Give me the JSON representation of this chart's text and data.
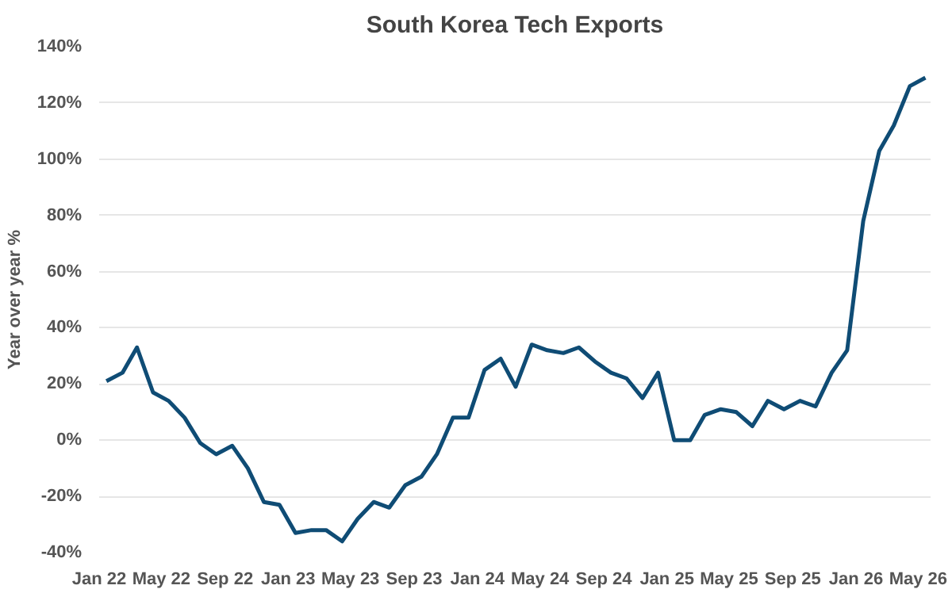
{
  "chart_data": {
    "type": "line",
    "title": "South Korea Tech Exports",
    "ylabel": "Year over year %",
    "x": [
      "2022-01-15",
      "2022-02-15",
      "2022-03-15",
      "2022-04-15",
      "2022-05-15",
      "2022-06-15",
      "2022-07-15",
      "2022-08-15",
      "2022-09-15",
      "2022-10-15",
      "2022-11-15",
      "2022-12-15",
      "2023-01-15",
      "2023-02-15",
      "2023-03-15",
      "2023-04-15",
      "2023-05-15",
      "2023-06-15",
      "2023-07-15",
      "2023-08-15",
      "2023-09-15",
      "2023-10-15",
      "2023-11-15",
      "2023-12-15",
      "2024-01-15",
      "2024-02-15",
      "2024-03-15",
      "2024-04-15",
      "2024-05-15",
      "2024-06-15",
      "2024-07-15",
      "2024-08-15",
      "2024-09-15",
      "2024-10-15",
      "2024-11-15",
      "2024-12-15",
      "2025-01-15",
      "2025-02-15",
      "2025-03-15",
      "2025-04-15",
      "2025-05-15",
      "2025-06-15",
      "2025-07-15",
      "2025-08-15",
      "2025-09-15",
      "2025-10-15",
      "2025-11-15",
      "2025-12-15",
      "2026-01-15",
      "2026-02-15",
      "2026-03-15",
      "2026-04-15",
      "2026-05-15"
    ],
    "series": [
      {
        "color": "#0f4c75",
        "values": [
          21,
          24,
          33,
          17,
          14,
          8,
          -1,
          -5,
          -2,
          -10,
          -22,
          -23,
          -33,
          -32,
          -32,
          -36,
          -28,
          -22,
          -24,
          -16,
          -13,
          -5,
          8,
          8,
          25,
          29,
          19,
          34,
          32,
          31,
          33,
          28,
          24,
          22,
          15,
          24,
          0,
          0,
          9,
          11,
          10,
          5,
          14,
          11,
          14,
          12,
          24,
          32,
          78,
          103,
          112,
          126,
          129
        ]
      }
    ],
    "xlim": [
      "2022-01-01",
      "2026-05-25"
    ],
    "xticks": [
      {
        "value": "2022-01-01",
        "label": "Jan 22"
      },
      {
        "value": "2022-05-01",
        "label": "May 22"
      },
      {
        "value": "2022-09-01",
        "label": "Sep 22"
      },
      {
        "value": "2023-01-01",
        "label": "Jan 23"
      },
      {
        "value": "2023-05-01",
        "label": "May 23"
      },
      {
        "value": "2023-09-01",
        "label": "Sep 23"
      },
      {
        "value": "2024-01-01",
        "label": "Jan 24"
      },
      {
        "value": "2024-05-01",
        "label": "May 24"
      },
      {
        "value": "2024-09-01",
        "label": "Sep 24"
      },
      {
        "value": "2025-01-01",
        "label": "Jan 25"
      },
      {
        "value": "2025-05-01",
        "label": "May 25"
      },
      {
        "value": "2025-09-01",
        "label": "Sep 25"
      },
      {
        "value": "2026-01-01",
        "label": "Jan 26"
      },
      {
        "value": "2026-05-01",
        "label": "May 26"
      }
    ],
    "ylim": [
      -40,
      140
    ],
    "yticks": [
      {
        "value": -40,
        "label": "-40%"
      },
      {
        "value": -20,
        "label": "-20%"
      },
      {
        "value": 0,
        "label": "0%"
      },
      {
        "value": 20,
        "label": "20%"
      },
      {
        "value": 40,
        "label": "40%"
      },
      {
        "value": 60,
        "label": "60%"
      },
      {
        "value": 80,
        "label": "80%"
      },
      {
        "value": 100,
        "label": "100%"
      },
      {
        "value": 120,
        "label": "120%"
      },
      {
        "value": 140,
        "label": "140%"
      }
    ],
    "grid": "y",
    "line_style": "solid"
  }
}
